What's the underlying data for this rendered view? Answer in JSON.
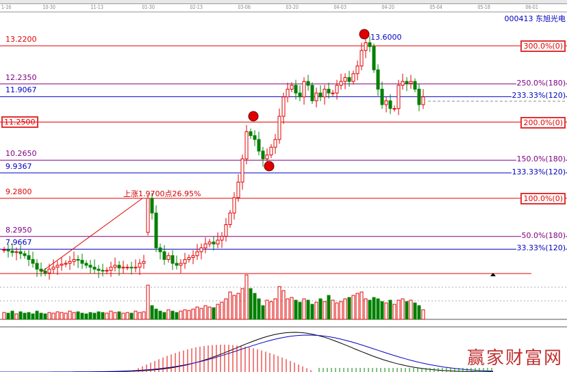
{
  "header": {
    "stock": "000413 东旭光电",
    "dates": [
      "1-16",
      "10-30",
      "11-13",
      "01-30",
      "02-13",
      "03-06",
      "03-20",
      "04-03",
      "04-20",
      "05-04",
      "05-18",
      "06-01"
    ]
  },
  "levels": [
    {
      "price": "13.2200",
      "label": "300.0%(0)",
      "color": "#e00000",
      "boxed_right": true,
      "boxed_left": false
    },
    {
      "price": "12.2350",
      "label": "250.0%(180)",
      "color": "#800080",
      "boxed_right": false,
      "boxed_left": false
    },
    {
      "price": "11.9067",
      "label": "233.33%(120)",
      "color": "#0000c0",
      "boxed_right": false,
      "boxed_left": false
    },
    {
      "price": "11.2500",
      "label": "200.0%(0)",
      "color": "#e00000",
      "boxed_right": true,
      "boxed_left": true
    },
    {
      "price": "10.2650",
      "label": "150.0%(180)",
      "color": "#800080",
      "boxed_right": false,
      "boxed_left": false
    },
    {
      "price": "9.9367",
      "label": "133.33%(120)",
      "color": "#0000c0",
      "boxed_right": false,
      "boxed_left": false
    },
    {
      "price": "9.2800",
      "label": "100.0%(0)",
      "color": "#e00000",
      "boxed_right": true,
      "boxed_left": false
    },
    {
      "price": "8.2950",
      "label": "50.0%(180)",
      "color": "#800080",
      "boxed_right": false,
      "boxed_left": false
    },
    {
      "price": "7.9667",
      "label": "33.33%(120)",
      "color": "#0000c0",
      "boxed_right": false,
      "boxed_left": false
    }
  ],
  "annotations": {
    "rise": "上涨1.9700点26.95%",
    "high": "13.6000"
  },
  "watermark": "赢家财富网",
  "chart_data": {
    "type": "candlestick",
    "up_color": "#e00000",
    "down_color": "#008000",
    "ylim": [
      7.2,
      13.7
    ],
    "closes": [
      7.95,
      7.92,
      7.88,
      7.9,
      7.85,
      7.8,
      7.7,
      7.6,
      7.45,
      7.4,
      7.35,
      7.45,
      7.5,
      7.55,
      7.58,
      7.6,
      7.65,
      7.7,
      7.68,
      7.6,
      7.55,
      7.5,
      7.45,
      7.42,
      7.4,
      7.42,
      7.5,
      7.55,
      7.48,
      7.5,
      7.5,
      7.48,
      7.5,
      7.6,
      7.65,
      9.28,
      8.9,
      8.0,
      7.9,
      7.7,
      7.8,
      7.6,
      7.55,
      7.6,
      7.7,
      7.75,
      7.8,
      7.9,
      8.0,
      8.1,
      8.15,
      8.1,
      8.2,
      8.3,
      8.6,
      8.9,
      9.3,
      9.7,
      10.3,
      11.0,
      10.9,
      10.8,
      10.5,
      10.3,
      10.4,
      10.6,
      10.8,
      11.4,
      11.9,
      12.1,
      12.2,
      12.0,
      11.9,
      12.3,
      12.2,
      11.8,
      12.0,
      11.9,
      12.1,
      12.0,
      12.0,
      12.2,
      12.3,
      12.4,
      12.3,
      12.5,
      12.7,
      13.1,
      13.3,
      13.2,
      12.6,
      12.1,
      11.7,
      11.8,
      11.6,
      11.6,
      12.2,
      12.3,
      12.25,
      12.3,
      12.1,
      11.7,
      11.9
    ],
    "volumes": [
      10,
      9,
      12,
      8,
      11,
      9,
      10,
      8,
      12,
      9,
      8,
      10,
      9,
      11,
      10,
      9,
      12,
      10,
      11,
      9,
      8,
      10,
      9,
      11,
      10,
      9,
      12,
      10,
      11,
      9,
      10,
      9,
      12,
      10,
      11,
      50,
      20,
      15,
      12,
      10,
      14,
      12,
      10,
      12,
      14,
      13,
      15,
      18,
      16,
      20,
      18,
      17,
      22,
      25,
      30,
      40,
      35,
      38,
      45,
      65,
      45,
      38,
      30,
      20,
      28,
      26,
      30,
      48,
      42,
      30,
      32,
      28,
      25,
      30,
      28,
      22,
      25,
      30,
      26,
      35,
      28,
      24,
      26,
      30,
      32,
      35,
      38,
      40,
      30,
      28,
      32,
      30,
      26,
      24,
      28,
      22,
      28,
      30,
      26,
      28,
      24,
      20,
      14
    ],
    "macd": {
      "dif": "line",
      "dea": "line"
    }
  }
}
